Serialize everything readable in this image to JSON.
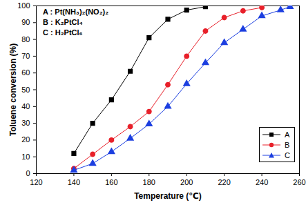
{
  "chart_data": {
    "type": "line",
    "xlabel": "Temperature (℃)",
    "ylabel": "Toluene conversion (%)",
    "annotations": [
      "A : Pt(NH₃)₂(NO₂)₂",
      "B : K₂PtCl₄",
      "C : H₂PtCl₆"
    ],
    "xlim": [
      120,
      260
    ],
    "xticks": [
      120,
      140,
      160,
      180,
      200,
      220,
      240,
      260
    ],
    "ylim": [
      0,
      100
    ],
    "yticks": [
      0,
      10,
      20,
      30,
      40,
      50,
      60,
      70,
      80,
      90,
      100
    ],
    "legend": "lower right",
    "series": [
      {
        "name": "A",
        "color": "#000000",
        "marker": "square",
        "x": [
          140,
          150,
          160,
          170,
          180,
          190,
          200,
          210
        ],
        "values": [
          12,
          30,
          44,
          61,
          81,
          92,
          97.5,
          99.5
        ]
      },
      {
        "name": "B",
        "color": "#e8202a",
        "marker": "circle",
        "x": [
          140,
          150,
          160,
          170,
          180,
          190,
          200,
          210,
          220,
          230,
          240
        ],
        "values": [
          3,
          11.5,
          20,
          28,
          37,
          53,
          70,
          85,
          93,
          97,
          99
        ]
      },
      {
        "name": "C",
        "color": "#1c3fe0",
        "marker": "triangle",
        "x": [
          140,
          150,
          160,
          170,
          180,
          190,
          200,
          210,
          220,
          230,
          240,
          250,
          255
        ],
        "values": [
          2,
          6,
          13,
          21,
          29.5,
          40,
          53.5,
          66,
          78,
          86,
          94,
          97.5,
          99.5
        ]
      }
    ]
  }
}
